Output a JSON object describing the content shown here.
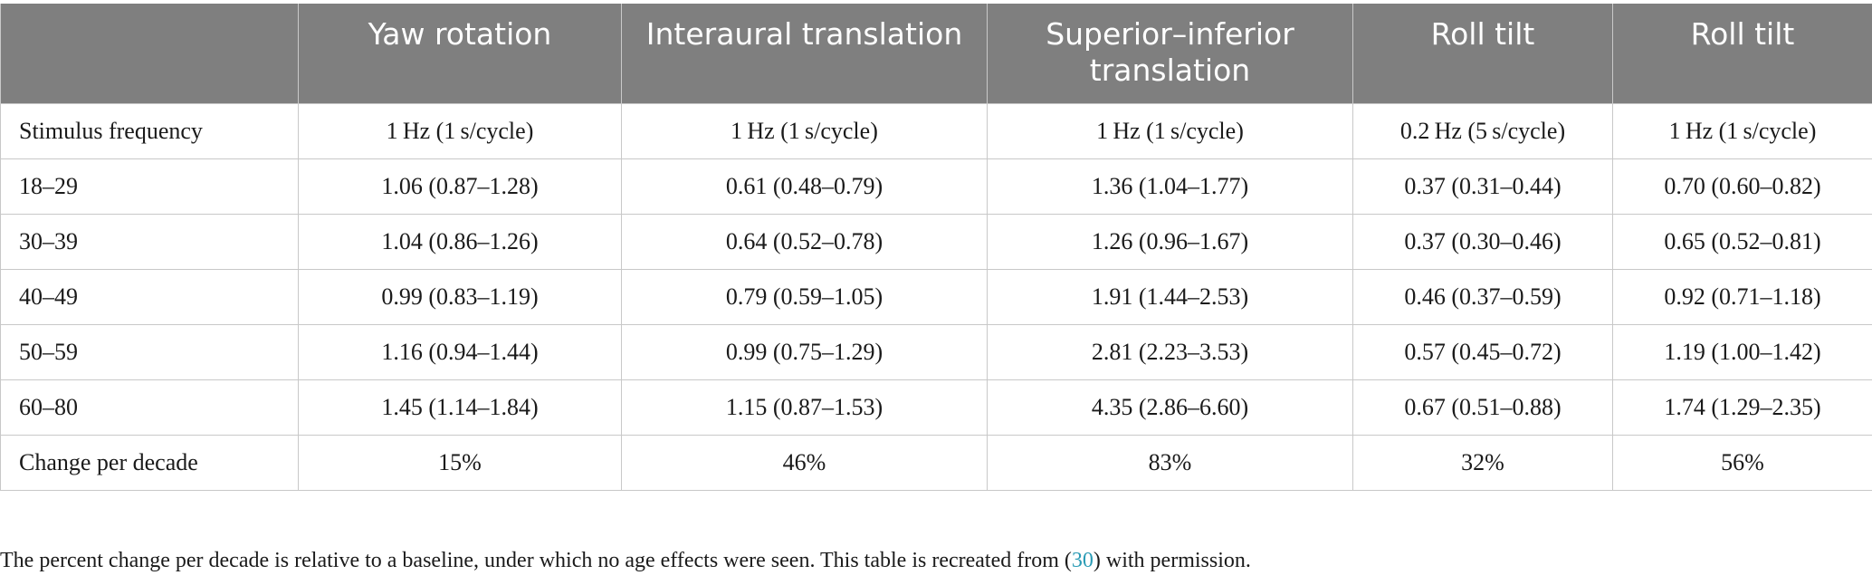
{
  "table": {
    "headers": [
      "",
      "Yaw rotation",
      "Interaural translation",
      "Superior–inferior translation",
      "Roll tilt",
      "Roll tilt"
    ],
    "rows": [
      {
        "label": "Stimulus frequency",
        "cells": [
          "1 Hz (1 s/cycle)",
          "1 Hz (1 s/cycle)",
          "1 Hz (1 s/cycle)",
          "0.2 Hz (5 s/cycle)",
          "1 Hz (1 s/cycle)"
        ]
      },
      {
        "label": "18–29",
        "cells": [
          "1.06 (0.87–1.28)",
          "0.61 (0.48–0.79)",
          "1.36 (1.04–1.77)",
          "0.37 (0.31–0.44)",
          "0.70 (0.60–0.82)"
        ]
      },
      {
        "label": "30–39",
        "cells": [
          "1.04 (0.86–1.26)",
          "0.64 (0.52–0.78)",
          "1.26 (0.96–1.67)",
          "0.37 (0.30–0.46)",
          "0.65 (0.52–0.81)"
        ]
      },
      {
        "label": "40–49",
        "cells": [
          "0.99 (0.83–1.19)",
          "0.79 (0.59–1.05)",
          "1.91 (1.44–2.53)",
          "0.46 (0.37–0.59)",
          "0.92 (0.71–1.18)"
        ]
      },
      {
        "label": "50–59",
        "cells": [
          "1.16 (0.94–1.44)",
          "0.99 (0.75–1.29)",
          "2.81 (2.23–3.53)",
          "0.57 (0.45–0.72)",
          "1.19 (1.00–1.42)"
        ]
      },
      {
        "label": "60–80",
        "cells": [
          "1.45 (1.14–1.84)",
          "1.15 (0.87–1.53)",
          "4.35 (2.86–6.60)",
          "0.67 (0.51–0.88)",
          "1.74 (1.29–2.35)"
        ]
      },
      {
        "label": "Change per decade",
        "cells": [
          "15%",
          "46%",
          "83%",
          "32%",
          "56%"
        ]
      }
    ]
  },
  "footnote": {
    "before": "The percent change per decade is relative to a baseline, under which no age effects were seen. This table is recreated from (",
    "ref": "30",
    "after": ") with permission."
  },
  "colors": {
    "header_background": "#7f7f7f",
    "header_text": "#ffffff",
    "grid_line": "#c8c8c8",
    "link": "#2a9bb5"
  }
}
